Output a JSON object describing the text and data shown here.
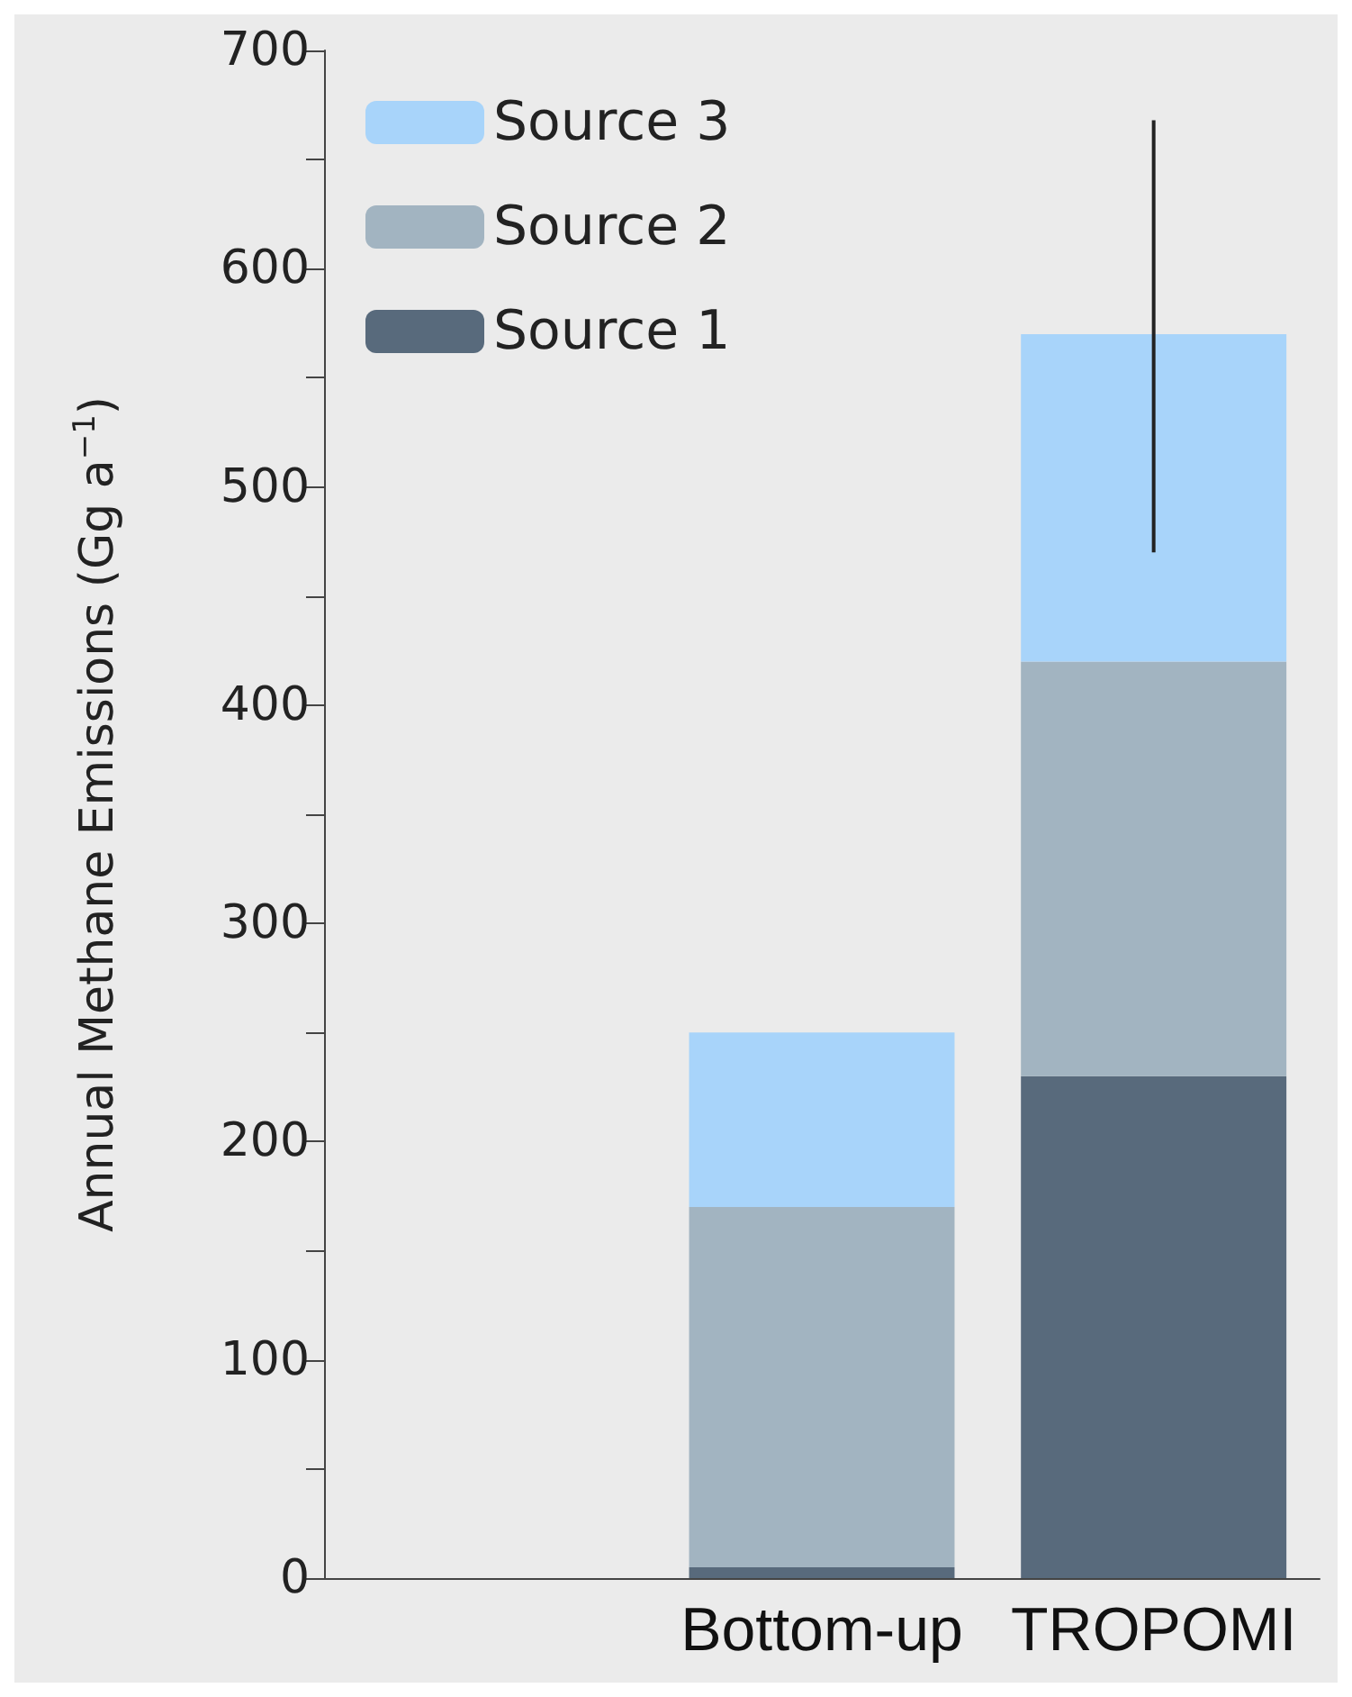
{
  "chart_data": {
    "type": "bar",
    "stacked": true,
    "ylabel": "Annual Methane Emissions (Gg a$^{−1}$)",
    "categories": [
      null,
      "Bottom-up",
      "TROPOMI"
    ],
    "series": [
      {
        "name": "Source 1",
        "color": "#586a7c",
        "values": [
          null,
          5,
          230
        ]
      },
      {
        "name": "Source 2",
        "color": "#a2b4c1",
        "values": [
          null,
          165,
          190
        ]
      },
      {
        "name": "Source 3",
        "color": "#a8d4fa",
        "values": [
          null,
          80,
          150
        ],
        "errors": [
          null,
          null,
          [
            470,
            668
          ]
        ]
      }
    ],
    "ylim": [
      0,
      700
    ],
    "yticks": [
      0,
      {
        "value": 50,
        "label": null
      },
      100,
      {
        "value": 150,
        "label": null
      },
      200,
      {
        "value": 250,
        "label": null
      },
      300,
      {
        "value": 350,
        "label": null
      },
      400,
      {
        "value": 450,
        "label": null
      },
      500,
      {
        "value": 550,
        "label": null
      },
      600,
      {
        "value": 650,
        "label": null
      },
      700
    ],
    "grid": false,
    "legend": "top left"
  }
}
